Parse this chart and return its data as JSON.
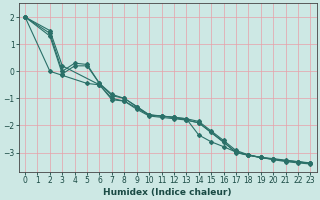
{
  "xlabel": "Humidex (Indice chaleur)",
  "ylabel": "",
  "bg_color": "#cde8e4",
  "grid_color": "#e8a0a8",
  "line_color": "#2a7068",
  "xlim": [
    -0.5,
    23.5
  ],
  "ylim": [
    -3.7,
    2.5
  ],
  "series": [
    {
      "x": [
        0,
        2,
        3,
        6,
        7,
        8,
        9,
        10,
        11,
        12,
        13,
        14,
        15,
        16,
        17,
        18,
        19,
        20,
        21,
        22,
        23
      ],
      "y": [
        2.0,
        1.5,
        0.2,
        -0.5,
        -1.0,
        -1.1,
        -1.4,
        -1.65,
        -1.7,
        -1.75,
        -1.8,
        -1.9,
        -2.25,
        -2.6,
        -3.0,
        -3.1,
        -3.18,
        -3.22,
        -3.28,
        -3.33,
        -3.38
      ]
    },
    {
      "x": [
        0,
        2,
        3,
        4,
        5,
        6,
        7,
        8,
        9,
        10,
        11,
        12,
        13,
        14,
        15,
        16,
        17,
        18,
        19,
        20,
        21,
        22,
        23
      ],
      "y": [
        2.0,
        1.4,
        0.0,
        0.3,
        0.25,
        -0.45,
        -0.9,
        -1.0,
        -1.3,
        -1.62,
        -1.65,
        -1.7,
        -1.75,
        -1.85,
        -2.2,
        -2.55,
        -2.92,
        -3.08,
        -3.18,
        -3.24,
        -3.3,
        -3.34,
        -3.4
      ]
    },
    {
      "x": [
        0,
        2,
        3,
        4,
        5,
        6,
        7,
        8,
        9,
        10,
        11,
        12,
        13,
        14,
        15,
        16,
        17,
        18,
        19,
        20,
        21,
        22,
        23
      ],
      "y": [
        2.0,
        1.3,
        -0.1,
        0.2,
        0.2,
        -0.45,
        -0.85,
        -1.0,
        -1.3,
        -1.6,
        -1.65,
        -1.7,
        -1.75,
        -2.35,
        -2.6,
        -2.78,
        -2.98,
        -3.08,
        -3.18,
        -3.24,
        -3.3,
        -3.34,
        -3.4
      ]
    },
    {
      "x": [
        0,
        2,
        3,
        5,
        6,
        7,
        8,
        9,
        10,
        11,
        12,
        13,
        14,
        17,
        18,
        19,
        20,
        21,
        22,
        23
      ],
      "y": [
        2.0,
        0.0,
        -0.15,
        -0.45,
        -0.5,
        -1.05,
        -1.1,
        -1.35,
        -1.62,
        -1.65,
        -1.7,
        -1.8,
        -1.9,
        -2.98,
        -3.1,
        -3.18,
        -3.26,
        -3.33,
        -3.38,
        -3.42
      ]
    }
  ],
  "xticks": [
    0,
    1,
    2,
    3,
    4,
    5,
    6,
    7,
    8,
    9,
    10,
    11,
    12,
    13,
    14,
    15,
    16,
    17,
    18,
    19,
    20,
    21,
    22,
    23
  ],
  "yticks": [
    -3,
    -2,
    -1,
    0,
    1,
    2
  ],
  "marker": "D",
  "markersize": 2,
  "linewidth": 0.8,
  "tick_fontsize": 5.5,
  "xlabel_fontsize": 6.5
}
